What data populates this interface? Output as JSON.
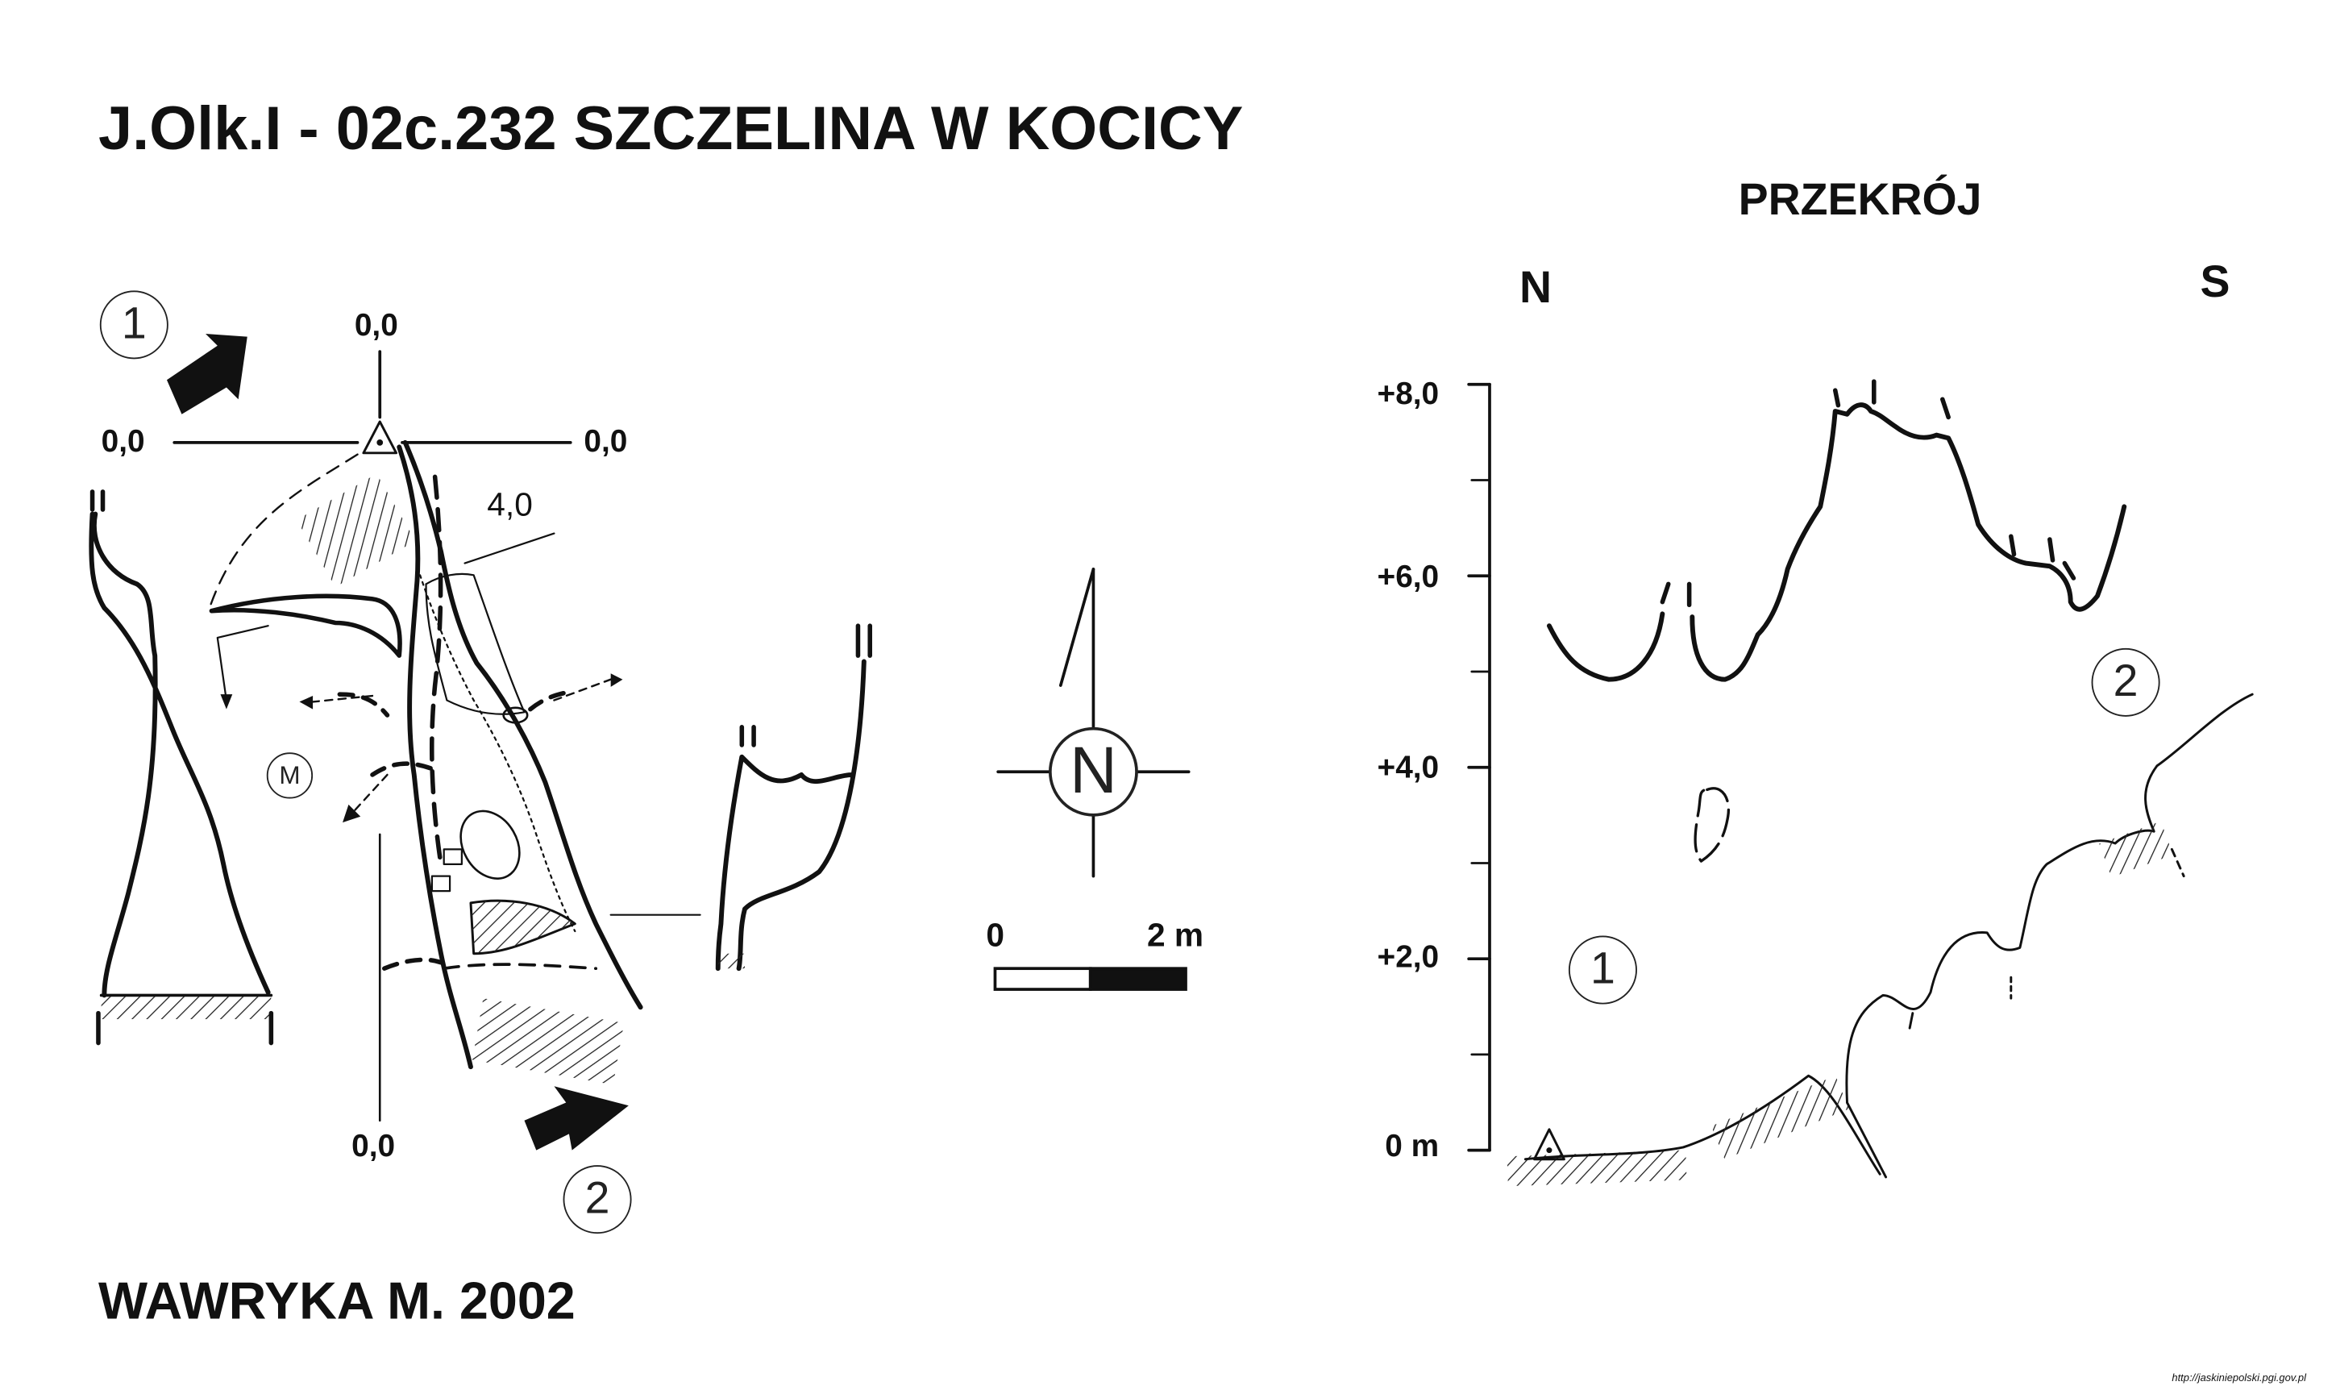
{
  "title": "J.Olk.I - 02c.232  SZCZELINA W KOCICY",
  "author": "WAWRYKA M. 2002",
  "section": {
    "title": "PRZEKRÓJ",
    "dir_left": "N",
    "dir_right": "S",
    "axis_labels": [
      "+8,0",
      "+6,0",
      "+4,0",
      "+2,0",
      "0 m"
    ],
    "marker_1": "1",
    "marker_2": "2"
  },
  "plan": {
    "coord_top": "0,0",
    "coord_left": "0,0",
    "coord_right": "0,0",
    "coord_bottom": "0,0",
    "depth_label": "4,0",
    "entrance_1": "1",
    "entrance_2": "2",
    "marker_m": "M"
  },
  "north_arrow": {
    "label": "N"
  },
  "scale_bar": {
    "start": "0",
    "end": "2 m"
  },
  "source_url": "http://jaskiniepolski.pgi.gov.pl"
}
